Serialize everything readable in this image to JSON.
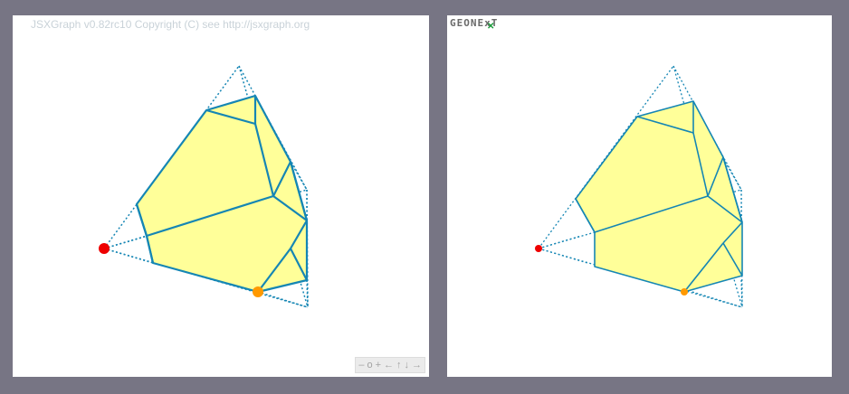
{
  "left_board": {
    "copyright": "JSXGraph v0.82rc10 Copyright (C) see http://jsxgraph.org",
    "navigation": {
      "zoom_out": "–",
      "zoom_reset": "o",
      "zoom_in": "+",
      "left": "←",
      "up": "↑",
      "down": "↓",
      "right": "→"
    }
  },
  "right_board": {
    "logo": "GEONExT"
  },
  "colors": {
    "background": "#777584",
    "panel": "#ffffff",
    "fill": "#ffff99",
    "edge": "#1586b4",
    "point_red": "#ee0000",
    "point_orange": "#ff9900"
  }
}
